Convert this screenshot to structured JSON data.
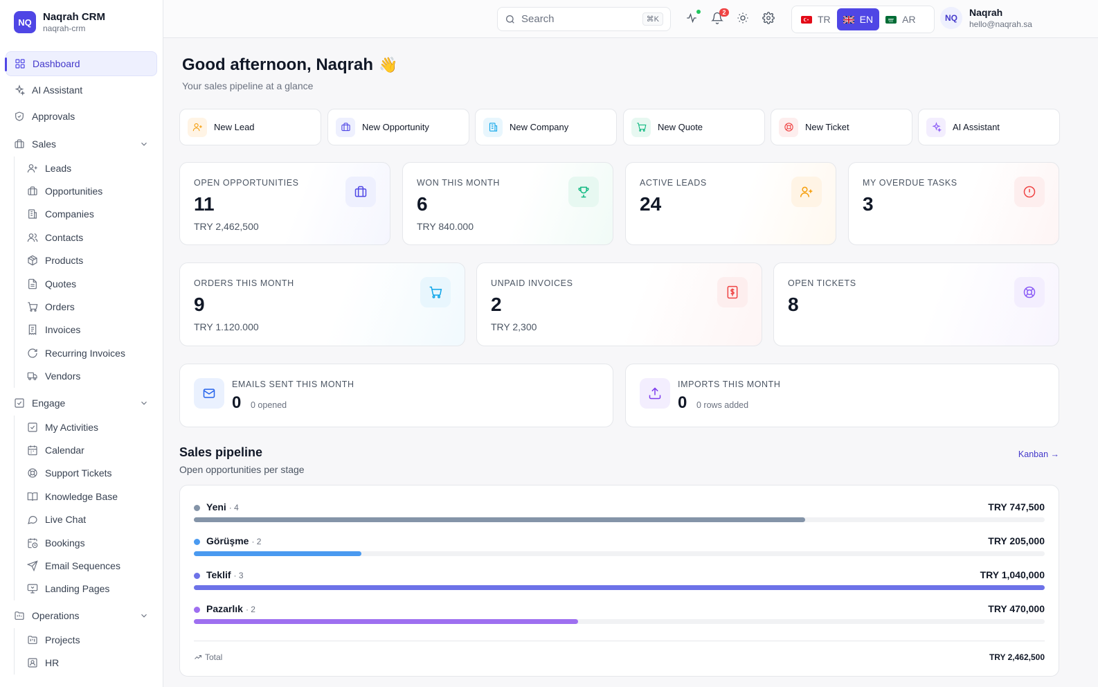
{
  "app": {
    "name": "Naqrah CRM",
    "slug": "naqrah-crm",
    "logo_text": "NQ"
  },
  "sidebar": {
    "top_items": [
      {
        "label": "Dashboard",
        "icon": "grid-icon",
        "active": true
      },
      {
        "label": "AI Assistant",
        "icon": "sparkles-icon"
      },
      {
        "label": "Approvals",
        "icon": "shield-check-icon"
      }
    ],
    "sections": [
      {
        "label": "Sales",
        "icon": "briefcase-icon",
        "items": [
          {
            "label": "Leads",
            "icon": "user-plus-icon"
          },
          {
            "label": "Opportunities",
            "icon": "briefcase-icon"
          },
          {
            "label": "Companies",
            "icon": "building-icon"
          },
          {
            "label": "Contacts",
            "icon": "users-icon"
          },
          {
            "label": "Products",
            "icon": "package-icon"
          },
          {
            "label": "Quotes",
            "icon": "file-text-icon"
          },
          {
            "label": "Orders",
            "icon": "cart-icon"
          },
          {
            "label": "Invoices",
            "icon": "receipt-icon"
          },
          {
            "label": "Recurring Invoices",
            "icon": "refresh-icon"
          },
          {
            "label": "Vendors",
            "icon": "truck-icon"
          }
        ]
      },
      {
        "label": "Engage",
        "icon": "check-square-icon",
        "items": [
          {
            "label": "My Activities",
            "icon": "check-square-icon"
          },
          {
            "label": "Calendar",
            "icon": "calendar-icon"
          },
          {
            "label": "Support Tickets",
            "icon": "life-buoy-icon"
          },
          {
            "label": "Knowledge Base",
            "icon": "book-icon"
          },
          {
            "label": "Live Chat",
            "icon": "chat-icon"
          },
          {
            "label": "Bookings",
            "icon": "calendar-clock-icon"
          },
          {
            "label": "Email Sequences",
            "icon": "send-icon"
          },
          {
            "label": "Landing Pages",
            "icon": "presentation-icon"
          }
        ]
      },
      {
        "label": "Operations",
        "icon": "folder-icon",
        "items": [
          {
            "label": "Projects",
            "icon": "folder-kanban-icon"
          },
          {
            "label": "HR",
            "icon": "id-card-icon"
          }
        ]
      }
    ]
  },
  "topbar": {
    "search_placeholder": "Search",
    "shortcut": "⌘K",
    "notifications_count": "2",
    "languages": [
      {
        "code": "TR",
        "active": false
      },
      {
        "code": "EN",
        "active": true
      },
      {
        "code": "AR",
        "active": false
      }
    ],
    "user": {
      "initials": "NQ",
      "name": "Naqrah",
      "email": "hello@naqrah.sa"
    }
  },
  "greeting": {
    "title": "Good afternoon, Naqrah",
    "emoji": "👋",
    "subtitle": "Your sales pipeline at a glance"
  },
  "quick_actions": [
    {
      "label": "New Lead",
      "icon": "user-plus-icon",
      "color": "#f59e0b",
      "bg": "#fff4e5"
    },
    {
      "label": "New Opportunity",
      "icon": "briefcase-icon",
      "color": "#4f46e5",
      "bg": "#eef0fe"
    },
    {
      "label": "New Company",
      "icon": "building-icon",
      "color": "#0ea5e9",
      "bg": "#e8f6fd"
    },
    {
      "label": "New Quote",
      "icon": "cart-icon",
      "color": "#10b981",
      "bg": "#e7f8f1"
    },
    {
      "label": "New Ticket",
      "icon": "life-buoy-icon",
      "color": "#ef4444",
      "bg": "#fdeeee"
    },
    {
      "label": "AI Assistant",
      "icon": "sparkles-icon",
      "color": "#8b5cf6",
      "bg": "#f3eefe"
    }
  ],
  "kpis_row1": [
    {
      "label": "OPEN OPPORTUNITIES",
      "value": "11",
      "sub": "TRY 2,462,500",
      "icon": "briefcase-icon",
      "color": "#4f46e5",
      "bg": "#eef0fe"
    },
    {
      "label": "WON THIS MONTH",
      "value": "6",
      "sub": "TRY 840.000",
      "icon": "trophy-icon",
      "color": "#10b981",
      "bg": "#e7f8f1"
    },
    {
      "label": "ACTIVE LEADS",
      "value": "24",
      "sub": "",
      "icon": "user-plus-icon",
      "color": "#f59e0b",
      "bg": "#fff4e5"
    },
    {
      "label": "MY OVERDUE TASKS",
      "value": "3",
      "sub": "",
      "icon": "alert-circle-icon",
      "color": "#ef4444",
      "bg": "#fdeeee"
    }
  ],
  "kpis_row2": [
    {
      "label": "ORDERS THIS MONTH",
      "value": "9",
      "sub": "TRY 1.120.000",
      "icon": "cart-icon",
      "color": "#0ea5e9",
      "bg": "#e8f6fd"
    },
    {
      "label": "UNPAID INVOICES",
      "value": "2",
      "sub": "TRY 2,300",
      "icon": "invoice-dollar-icon",
      "color": "#ef4444",
      "bg": "#fdeeee"
    },
    {
      "label": "OPEN TICKETS",
      "value": "8",
      "sub": "",
      "icon": "life-buoy-icon",
      "color": "#8b5cf6",
      "bg": "#f3eefe"
    }
  ],
  "kpis_row3": [
    {
      "label": "EMAILS SENT THIS MONTH",
      "value": "0",
      "sub": "0 opened",
      "icon": "mail-icon",
      "color": "#2563eb",
      "bg": "#eaf1fe"
    },
    {
      "label": "IMPORTS THIS MONTH",
      "value": "0",
      "sub": "0 rows added",
      "icon": "upload-icon",
      "color": "#7c3aed",
      "bg": "#f3eefe"
    }
  ],
  "pipeline": {
    "title": "Sales pipeline",
    "subtitle": "Open opportunities per stage",
    "link": "Kanban →",
    "stages": [
      {
        "name": "Yeni",
        "count": "· 4",
        "amount": "TRY 747,500",
        "value": 747500,
        "color": "#8494a8"
      },
      {
        "name": "Görüşme",
        "count": "· 2",
        "amount": "TRY 205,000",
        "value": 205000,
        "color": "#4a9af0"
      },
      {
        "name": "Teklif",
        "count": "· 3",
        "amount": "TRY 1,040,000",
        "value": 1040000,
        "color": "#6d72e8"
      },
      {
        "name": "Pazarlık",
        "count": "· 2",
        "amount": "TRY 470,000",
        "value": 470000,
        "color": "#9e6ff0"
      }
    ],
    "max_value": 1040000,
    "total_label": "Total",
    "total_amount": "TRY 2,462,500"
  }
}
